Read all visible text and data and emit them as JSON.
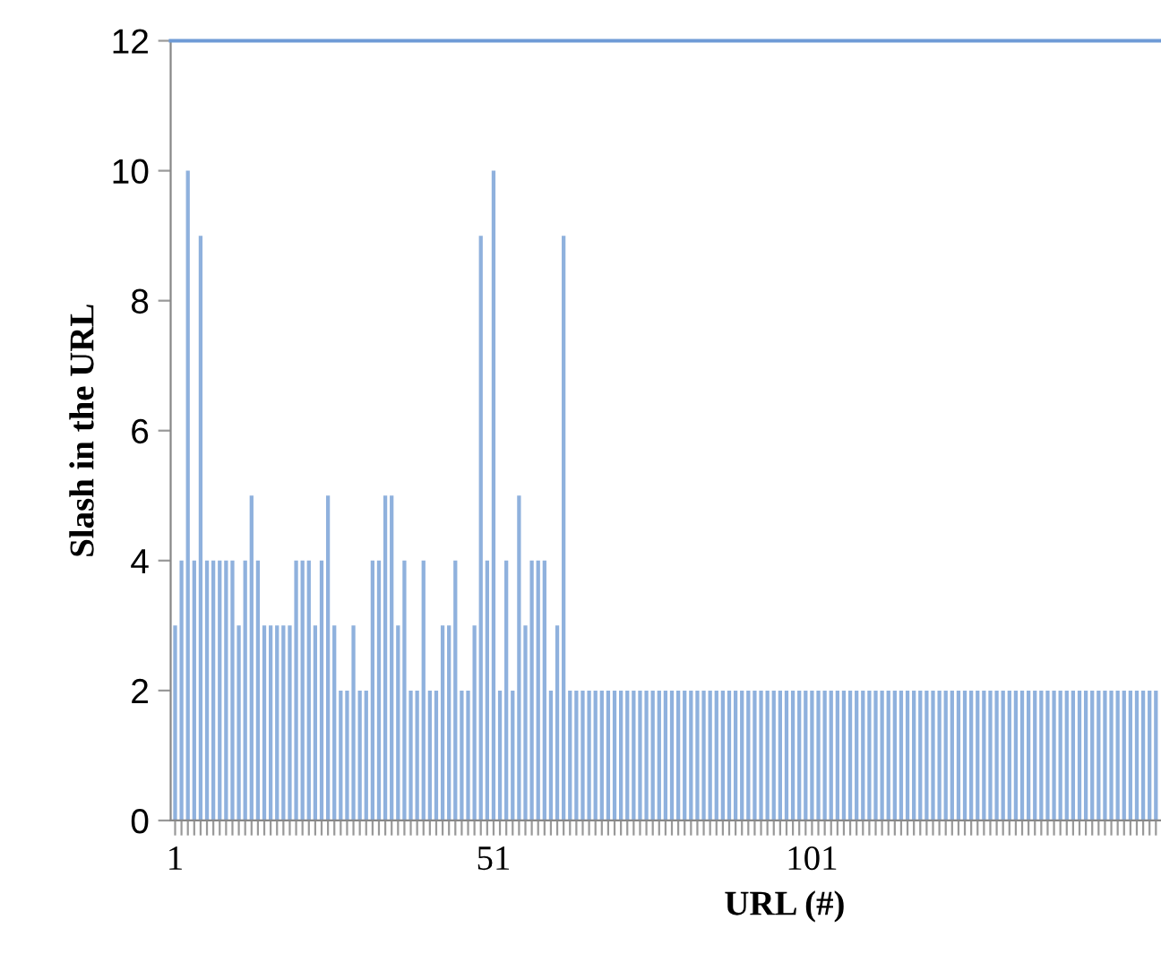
{
  "chart_data": {
    "type": "bar",
    "xlabel": "URL (#)",
    "ylabel": "Slash in the URL",
    "categories": [
      "1",
      null,
      null,
      null,
      null,
      null,
      null,
      null,
      null,
      null,
      null,
      null,
      null,
      null,
      null,
      null,
      null,
      null,
      null,
      null,
      null,
      null,
      null,
      null,
      null,
      null,
      null,
      null,
      null,
      null,
      null,
      null,
      null,
      null,
      null,
      null,
      null,
      null,
      null,
      null,
      null,
      null,
      null,
      null,
      null,
      null,
      null,
      null,
      null,
      null,
      "51",
      null,
      null,
      null,
      null,
      null,
      null,
      null,
      null,
      null,
      null,
      null,
      null,
      null,
      null,
      null,
      null,
      null,
      null,
      null,
      null,
      null,
      null,
      null,
      null,
      null,
      null,
      null,
      null,
      null,
      null,
      null,
      null,
      null,
      null,
      null,
      null,
      null,
      null,
      null,
      null,
      null,
      null,
      null,
      null,
      null,
      null,
      null,
      null,
      null,
      "101",
      null,
      null,
      null,
      null,
      null,
      null,
      null,
      null,
      null,
      null,
      null,
      null,
      null,
      null,
      null,
      null,
      null,
      null,
      null,
      null,
      null,
      null,
      null,
      null,
      null,
      null,
      null,
      null,
      null,
      null,
      null,
      null,
      null,
      null,
      null,
      null,
      null,
      null,
      null,
      null,
      null,
      null,
      null,
      null,
      null,
      null,
      null,
      null,
      null,
      null,
      null,
      null,
      null,
      null
    ],
    "values": [
      3,
      4,
      10,
      4,
      9,
      4,
      4,
      4,
      4,
      4,
      3,
      4,
      5,
      4,
      3,
      3,
      3,
      3,
      3,
      4,
      4,
      4,
      3,
      4,
      5,
      3,
      2,
      2,
      3,
      2,
      2,
      4,
      4,
      5,
      5,
      3,
      4,
      2,
      2,
      4,
      2,
      2,
      3,
      3,
      4,
      2,
      2,
      3,
      9,
      4,
      10,
      2,
      4,
      2,
      5,
      3,
      4,
      4,
      4,
      2,
      3,
      9,
      2,
      2,
      2,
      2,
      2,
      2,
      2,
      2,
      2,
      2,
      2,
      2,
      2,
      2,
      2,
      2,
      2,
      2,
      2,
      2,
      2,
      2,
      2,
      2,
      2,
      2,
      2,
      2,
      2,
      2,
      2,
      2,
      2,
      2,
      2,
      2,
      2,
      2,
      2,
      2,
      2,
      2,
      2,
      2,
      2,
      2,
      2,
      2,
      2,
      2,
      2,
      2,
      2,
      2,
      2,
      2,
      2,
      2,
      2,
      2,
      2,
      2,
      2,
      2,
      2,
      2,
      2,
      2,
      2,
      2,
      2,
      2,
      2,
      2,
      2,
      2,
      2,
      2,
      2,
      2,
      2,
      2,
      2,
      2,
      2,
      2,
      2,
      2,
      2,
      2,
      2,
      2,
      2
    ],
    "color": "#8fb1dd",
    "ylim": [
      0,
      12
    ],
    "yticks": [
      0,
      2,
      4,
      6,
      8,
      10,
      12
    ],
    "grid": false,
    "legend": false
  }
}
